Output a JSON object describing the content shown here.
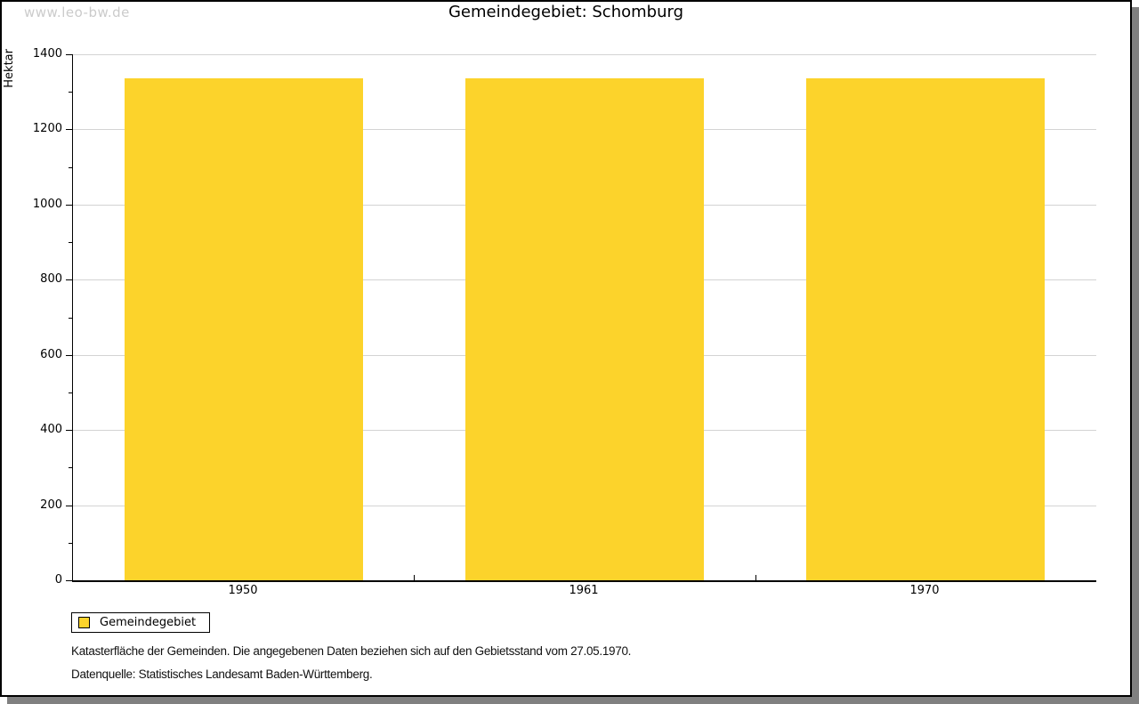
{
  "watermark": "www.leo-bw.de",
  "title": "Gemeindegebiet: Schomburg",
  "chart_data": {
    "type": "bar",
    "title": "Gemeindegebiet: Schomburg",
    "categories": [
      "1950",
      "1961",
      "1970"
    ],
    "values": [
      1337,
      1337,
      1337
    ],
    "series": [
      {
        "name": "Gemeindegebiet",
        "values": [
          1337,
          1337,
          1337
        ]
      }
    ],
    "xlabel": "",
    "ylabel": "Hektar",
    "ylim": [
      0,
      1400
    ],
    "y_major_step": 200,
    "y_minor_step": 100,
    "grid": "horizontal-major",
    "legend_position": "bottom-left",
    "legend": {
      "entries": [
        {
          "label": "Gemeindegebiet",
          "color": "#FCD32B"
        }
      ]
    }
  },
  "notes": {
    "line1": "Katasterfläche der Gemeinden. Die angegebenen Daten beziehen sich auf den Gebietsstand vom 27.05.1970.",
    "line2": "Datenquelle: Statistisches Landesamt Baden-Württemberg."
  },
  "colors": {
    "bar": "#FCD32B",
    "gridline": "#d3d3d3",
    "axis": "#000000",
    "watermark": "#cbcbcb",
    "shadow": "#808080",
    "background": "#ffffff"
  }
}
